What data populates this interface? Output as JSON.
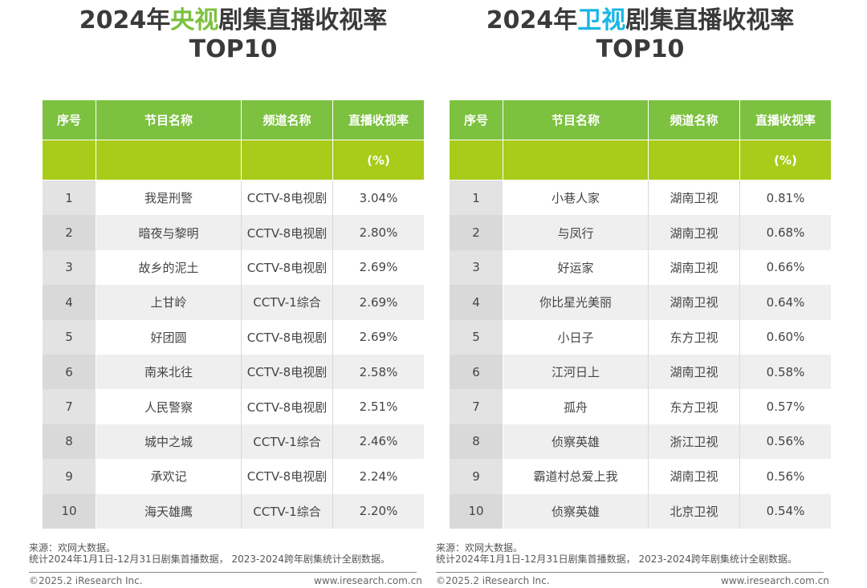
{
  "left": {
    "title_pre": "2024年",
    "title_hl": "央视",
    "title_post": "剧集直播收视率",
    "title_line2": "TOP10",
    "headers": {
      "rank": "序号",
      "program": "节目名称",
      "channel": "频道名称",
      "rating": "直播收视率",
      "unit": "(%)"
    },
    "rows": [
      {
        "rank": "1",
        "program": "我是刑警",
        "channel": "CCTV-8电视剧",
        "rating": "3.04%"
      },
      {
        "rank": "2",
        "program": "暗夜与黎明",
        "channel": "CCTV-8电视剧",
        "rating": "2.80%"
      },
      {
        "rank": "3",
        "program": "故乡的泥土",
        "channel": "CCTV-8电视剧",
        "rating": "2.69%"
      },
      {
        "rank": "4",
        "program": "上甘岭",
        "channel": "CCTV-1综合",
        "rating": "2.69%"
      },
      {
        "rank": "5",
        "program": "好团圆",
        "channel": "CCTV-8电视剧",
        "rating": "2.69%"
      },
      {
        "rank": "6",
        "program": "南来北往",
        "channel": "CCTV-8电视剧",
        "rating": "2.58%"
      },
      {
        "rank": "7",
        "program": "人民警察",
        "channel": "CCTV-8电视剧",
        "rating": "2.51%"
      },
      {
        "rank": "8",
        "program": "城中之城",
        "channel": "CCTV-1综合",
        "rating": "2.46%"
      },
      {
        "rank": "9",
        "program": "承欢记",
        "channel": "CCTV-8电视剧",
        "rating": "2.24%"
      },
      {
        "rank": "10",
        "program": "海天雄鹰",
        "channel": "CCTV-1综合",
        "rating": "2.20%"
      }
    ],
    "source_line1": "来源：欢网大数据。",
    "source_line2": "统计2024年1月1日-12月31日剧集首播数据， 2023-2024跨年剧集统计全剧数据。",
    "copyright": "©2025.2 iResearch Inc.",
    "site": "www.iresearch.com.cn"
  },
  "right": {
    "title_pre": "2024年",
    "title_hl": "卫视",
    "title_post": "剧集直播收视率",
    "title_line2": "TOP10",
    "headers": {
      "rank": "序号",
      "program": "节目名称",
      "channel": "频道名称",
      "rating": "直播收视率",
      "unit": "(%)"
    },
    "rows": [
      {
        "rank": "1",
        "program": "小巷人家",
        "channel": "湖南卫视",
        "rating": "0.81%"
      },
      {
        "rank": "2",
        "program": "与凤行",
        "channel": "湖南卫视",
        "rating": "0.68%"
      },
      {
        "rank": "3",
        "program": "好运家",
        "channel": "湖南卫视",
        "rating": "0.66%"
      },
      {
        "rank": "4",
        "program": "你比星光美丽",
        "channel": "湖南卫视",
        "rating": "0.64%"
      },
      {
        "rank": "5",
        "program": "小日子",
        "channel": "东方卫视",
        "rating": "0.60%"
      },
      {
        "rank": "6",
        "program": "江河日上",
        "channel": "湖南卫视",
        "rating": "0.58%"
      },
      {
        "rank": "7",
        "program": "孤舟",
        "channel": "东方卫视",
        "rating": "0.57%"
      },
      {
        "rank": "8",
        "program": "侦察英雄",
        "channel": "浙江卫视",
        "rating": "0.56%"
      },
      {
        "rank": "9",
        "program": "霸道村总爱上我",
        "channel": "湖南卫视",
        "rating": "0.56%"
      },
      {
        "rank": "10",
        "program": "侦察英雄",
        "channel": "北京卫视",
        "rating": "0.54%"
      }
    ],
    "source_line1": "来源：欢网大数据。",
    "source_line2": "统计2024年1月1日-12月31日剧集首播数据， 2023-2024跨年剧集统计全剧数据。",
    "copyright": "©2025.2 iResearch Inc.",
    "site": "www.iresearch.com.cn"
  },
  "colors": {
    "header_green": "#7cc13f",
    "unit_row": "#a8cc19",
    "highlight_green": "#7cc13f",
    "highlight_blue": "#1ab6e6"
  }
}
